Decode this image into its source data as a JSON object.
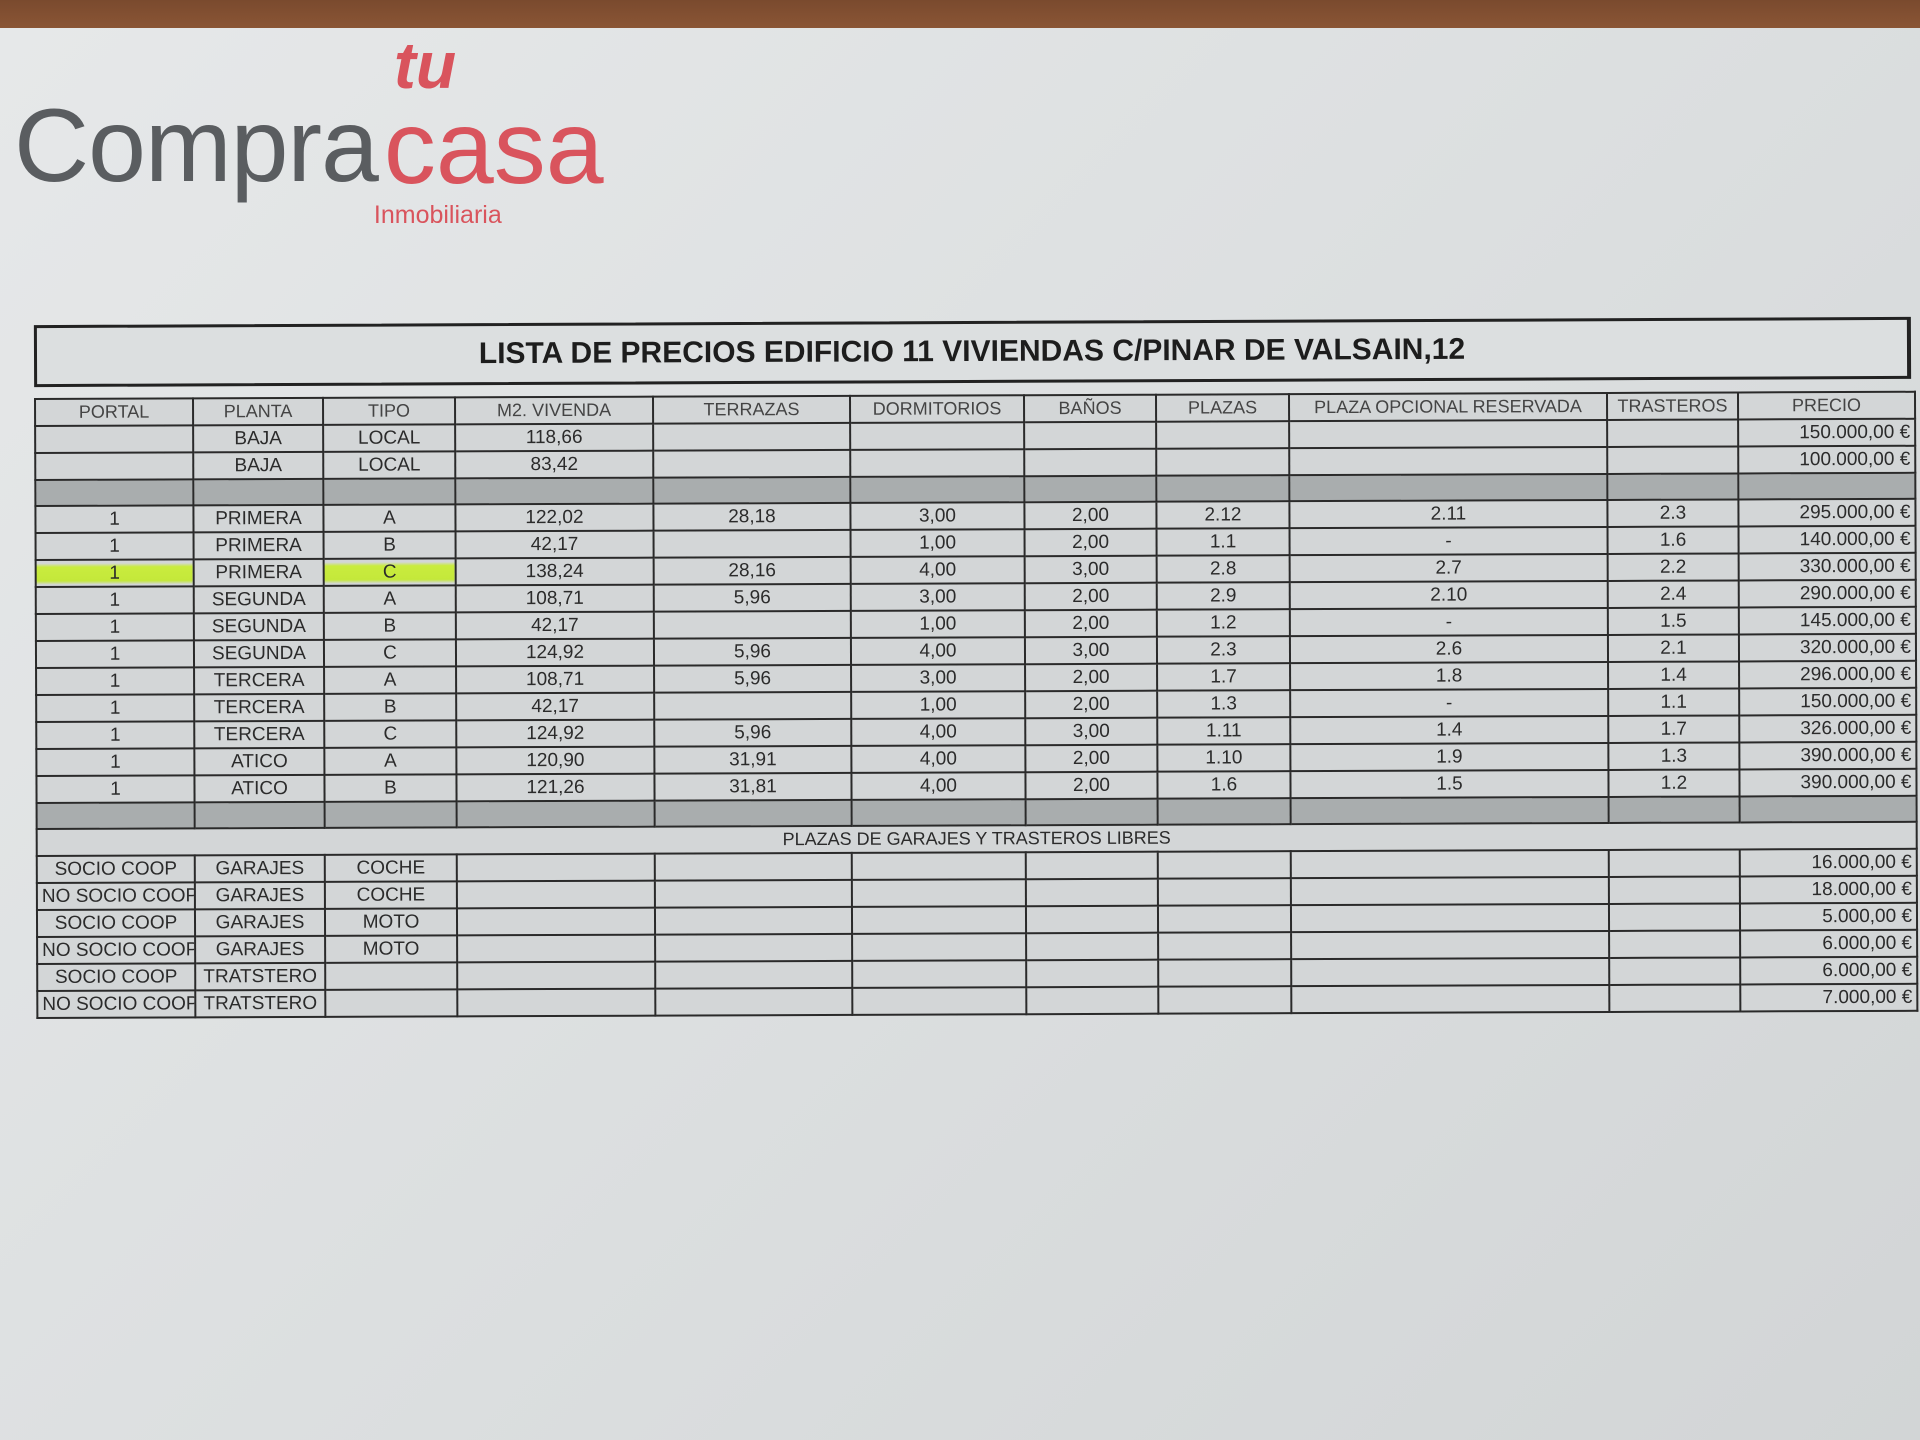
{
  "logo": {
    "compra": "Compra",
    "tu": "tu",
    "casa": "casa",
    "subtitle": "Inmobiliaria",
    "colors": {
      "gray": "#5a5d60",
      "red": "#d9545d"
    }
  },
  "title": "LISTA DE PRECIOS EDIFICIO 11 VIVIENDAS C/PINAR DE VALSAIN,12",
  "headers": [
    "PORTAL",
    "PLANTA",
    "TIPO",
    "M2. VIVENDA",
    "TERRAZAS",
    "DORMITORIOS",
    "BAÑOS",
    "PLAZAS",
    "PLAZA OPCIONAL RESERVADA",
    "TRASTEROS",
    "PRECIO"
  ],
  "locales": [
    [
      "",
      "BAJA",
      "LOCAL",
      "118,66",
      "",
      "",
      "",
      "",
      "",
      "",
      "150.000,00 €"
    ],
    [
      "",
      "BAJA",
      "LOCAL",
      "83,42",
      "",
      "",
      "",
      "",
      "",
      "",
      "100.000,00 €"
    ]
  ],
  "viviendas": [
    [
      "1",
      "PRIMERA",
      "A",
      "122,02",
      "28,18",
      "3,00",
      "2,00",
      "2.12",
      "2.11",
      "2.3",
      "295.000,00 €"
    ],
    [
      "1",
      "PRIMERA",
      "B",
      "42,17",
      "",
      "1,00",
      "2,00",
      "1.1",
      "-",
      "1.6",
      "140.000,00 €"
    ],
    [
      "1",
      "PRIMERA",
      "C",
      "138,24",
      "28,16",
      "4,00",
      "3,00",
      "2.8",
      "2.7",
      "2.2",
      "330.000,00 €"
    ],
    [
      "1",
      "SEGUNDA",
      "A",
      "108,71",
      "5,96",
      "3,00",
      "2,00",
      "2.9",
      "2.10",
      "2.4",
      "290.000,00 €"
    ],
    [
      "1",
      "SEGUNDA",
      "B",
      "42,17",
      "",
      "1,00",
      "2,00",
      "1.2",
      "-",
      "1.5",
      "145.000,00 €"
    ],
    [
      "1",
      "SEGUNDA",
      "C",
      "124,92",
      "5,96",
      "4,00",
      "3,00",
      "2.3",
      "2.6",
      "2.1",
      "320.000,00 €"
    ],
    [
      "1",
      "TERCERA",
      "A",
      "108,71",
      "5,96",
      "3,00",
      "2,00",
      "1.7",
      "1.8",
      "1.4",
      "296.000,00 €"
    ],
    [
      "1",
      "TERCERA",
      "B",
      "42,17",
      "",
      "1,00",
      "2,00",
      "1.3",
      "-",
      "1.1",
      "150.000,00 €"
    ],
    [
      "1",
      "TERCERA",
      "C",
      "124,92",
      "5,96",
      "4,00",
      "3,00",
      "1.11",
      "1.4",
      "1.7",
      "326.000,00 €"
    ],
    [
      "1",
      "ATICO",
      "A",
      "120,90",
      "31,91",
      "4,00",
      "2,00",
      "1.10",
      "1.9",
      "1.3",
      "390.000,00 €"
    ],
    [
      "1",
      "ATICO",
      "B",
      "121,26",
      "31,81",
      "4,00",
      "2,00",
      "1.6",
      "1.5",
      "1.2",
      "390.000,00 €"
    ]
  ],
  "highlight": {
    "row": 2,
    "cells": [
      0,
      2
    ],
    "color": "#c4e83a"
  },
  "garage_section_title": "PLAZAS DE GARAJES Y TRASTEROS LIBRES",
  "garajes": [
    [
      "SOCIO COOP",
      "GARAJES",
      "COCHE",
      "",
      "",
      "",
      "",
      "",
      "",
      "",
      "16.000,00 €"
    ],
    [
      "NO SOCIO COOP",
      "GARAJES",
      "COCHE",
      "",
      "",
      "",
      "",
      "",
      "",
      "",
      "18.000,00 €"
    ],
    [
      "SOCIO COOP",
      "GARAJES",
      "MOTO",
      "",
      "",
      "",
      "",
      "",
      "",
      "",
      "5.000,00 €"
    ],
    [
      "NO SOCIO COOP",
      "GARAJES",
      "MOTO",
      "",
      "",
      "",
      "",
      "",
      "",
      "",
      "6.000,00 €"
    ],
    [
      "SOCIO COOP",
      "TRATSTERO",
      "",
      "",
      "",
      "",
      "",
      "",
      "",
      "",
      "6.000,00 €"
    ],
    [
      "NO SOCIO COOP",
      "TRATSTERO",
      "",
      "",
      "",
      "",
      "",
      "",
      "",
      "",
      "7.000,00 €"
    ]
  ]
}
